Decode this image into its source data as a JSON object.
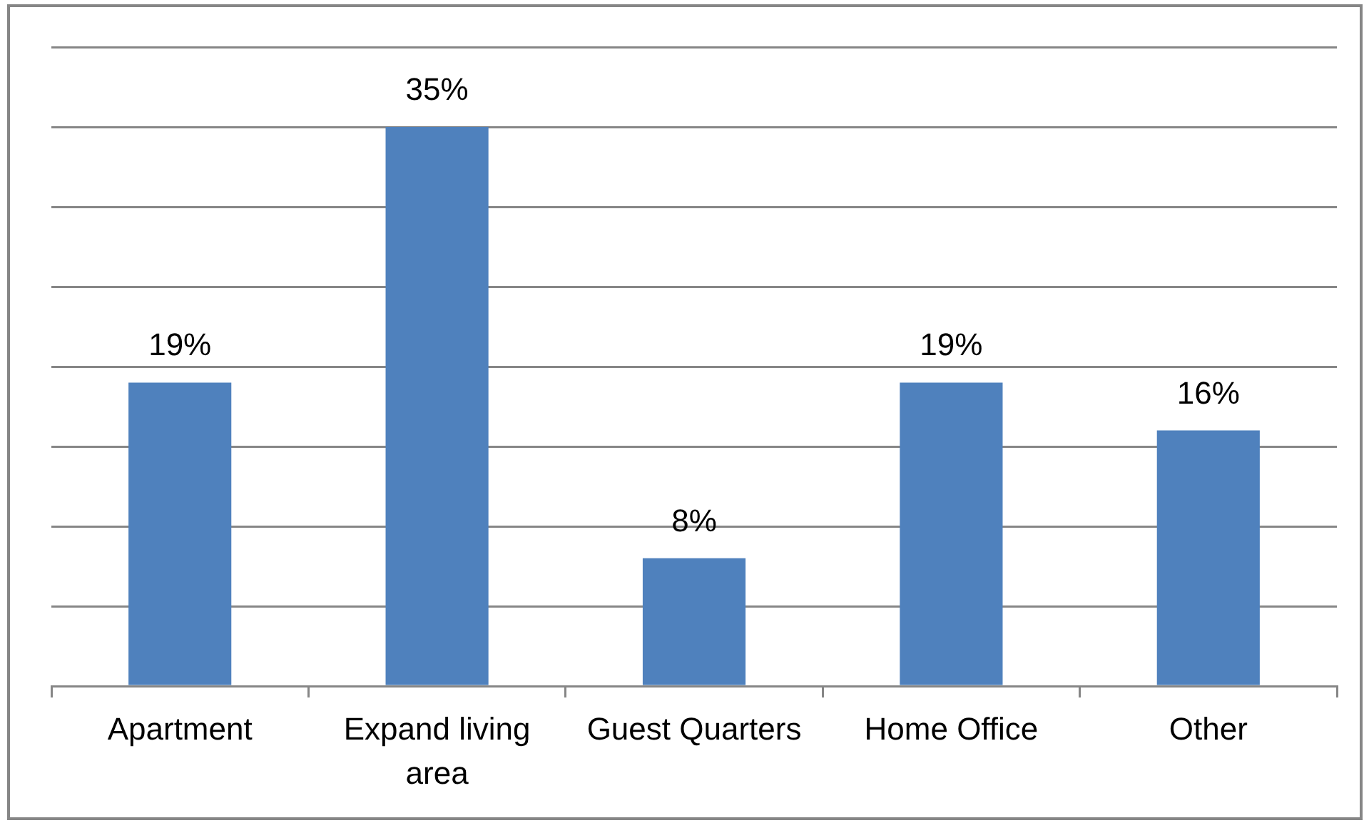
{
  "chart_data": {
    "type": "bar",
    "categories": [
      "Apartment",
      "Expand living area",
      "Guest Quarters",
      "Home Office",
      "Other"
    ],
    "values": [
      19,
      35,
      8,
      19,
      16
    ],
    "value_labels": [
      "19%",
      "35%",
      "8%",
      "19%",
      "16%"
    ],
    "color": "#4f81bd",
    "ylim": [
      0,
      40
    ],
    "yticks": [
      {
        "value": 0,
        "label": null
      },
      {
        "value": 5,
        "label": null
      },
      {
        "value": 10,
        "label": null
      },
      {
        "value": 15,
        "label": null
      },
      {
        "value": 20,
        "label": null
      },
      {
        "value": 25,
        "label": null
      },
      {
        "value": 30,
        "label": null
      },
      {
        "value": 35,
        "label": null
      },
      {
        "value": 40,
        "label": null
      }
    ],
    "grid": "y",
    "tick_labels": "x"
  }
}
